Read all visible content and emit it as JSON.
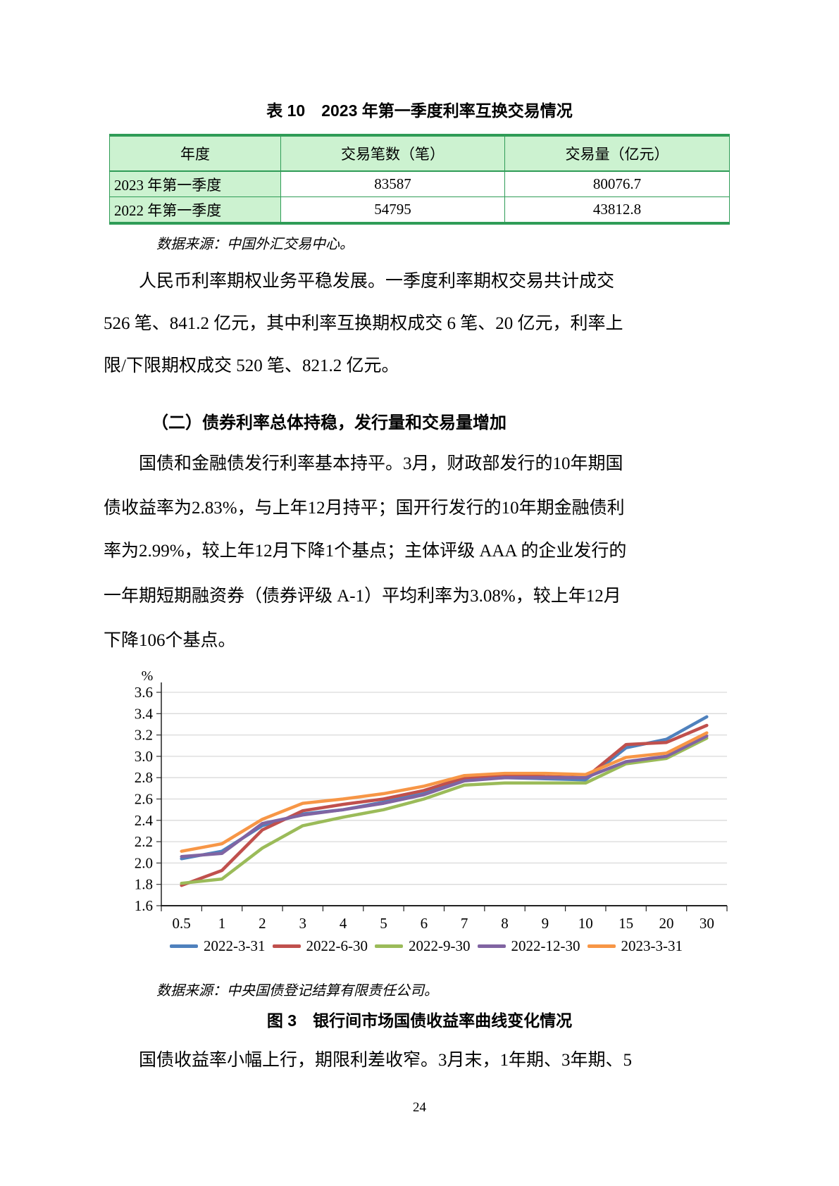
{
  "table_section": {
    "title": "表 10　2023 年第一季度利率互换交易情况",
    "table": {
      "headers": [
        "年度",
        "交易笔数（笔）",
        "交易量（亿元）"
      ],
      "rows": [
        [
          "2023 年第一季度",
          "83587",
          "80076.7"
        ],
        [
          "2022 年第一季度",
          "54795",
          "43812.8"
        ]
      ]
    },
    "source": "数据来源：中国外汇交易中心。"
  },
  "paragraph1": {
    "lines": [
      "人民币利率期权业务平稳发展。一季度利率期权交易共计成交",
      "526 笔、841.2 亿元，其中利率互换期权成交 6 笔、20 亿元，利率上",
      "限/下限期权成交 520 笔、821.2 亿元。"
    ]
  },
  "heading2": "（二）债券利率总体持稳，发行量和交易量增加",
  "paragraph2": {
    "lines": [
      "国债和金融债发行利率基本持平。3月，财政部发行的10年期国",
      "债收益率为2.83%，与上年12月持平；国开行发行的10年期金融债利",
      "率为2.99%，较上年12月下降1个基点；主体评级 AAA 的企业发行的",
      "一年期短期融资券（债券评级 A-1）平均利率为3.08%，较上年12月",
      "下降106个基点。"
    ]
  },
  "figure": {
    "source": "数据来源：中央国债登记结算有限责任公司。",
    "caption": "图 3　银行间市场国债收益率曲线变化情况"
  },
  "paragraph3": {
    "lines": [
      "国债收益率小幅上行，期限利差收窄。3月末，1年期、3年期、5"
    ]
  },
  "page": {
    "number": "24"
  },
  "colors": {
    "table_border_green": "#2f9c57",
    "table_header_bg": "#ccf2d0",
    "gridline_gray": "#d9d9d9"
  },
  "chart_data": {
    "type": "line",
    "title": "",
    "ylabel": "%",
    "xlabel": "",
    "grid": true,
    "legend_position": "bottom",
    "ylim": [
      1.6,
      3.6
    ],
    "yticks": [
      "3.6",
      "3.4",
      "3.2",
      "3.0",
      "2.8",
      "2.6",
      "2.4",
      "2.2",
      "2.0",
      "1.8",
      "1.6"
    ],
    "categories": [
      "0.5",
      "1",
      "2",
      "3",
      "4",
      "5",
      "6",
      "7",
      "8",
      "9",
      "10",
      "15",
      "20",
      "30"
    ],
    "series": [
      {
        "name": "2022-3-31",
        "color": "#4f81bd",
        "values": [
          2.04,
          2.11,
          2.35,
          2.46,
          2.5,
          2.57,
          2.65,
          2.78,
          2.8,
          2.79,
          2.78,
          3.08,
          3.16,
          3.37
        ]
      },
      {
        "name": "2022-6-30",
        "color": "#c0504d",
        "values": [
          1.79,
          1.93,
          2.31,
          2.49,
          2.55,
          2.6,
          2.68,
          2.8,
          2.83,
          2.81,
          2.8,
          3.11,
          3.13,
          3.29
        ]
      },
      {
        "name": "2022-9-30",
        "color": "#9bbb59",
        "values": [
          1.81,
          1.85,
          2.14,
          2.35,
          2.43,
          2.5,
          2.6,
          2.73,
          2.75,
          2.75,
          2.75,
          2.93,
          2.98,
          3.17
        ]
      },
      {
        "name": "2022-12-30",
        "color": "#8064a2",
        "values": [
          2.06,
          2.09,
          2.37,
          2.45,
          2.5,
          2.56,
          2.64,
          2.77,
          2.8,
          2.8,
          2.8,
          2.95,
          3.0,
          3.19
        ]
      },
      {
        "name": "2023-3-31",
        "color": "#f79646",
        "values": [
          2.11,
          2.18,
          2.41,
          2.56,
          2.6,
          2.65,
          2.72,
          2.82,
          2.84,
          2.84,
          2.83,
          2.99,
          3.03,
          3.22
        ]
      }
    ]
  }
}
